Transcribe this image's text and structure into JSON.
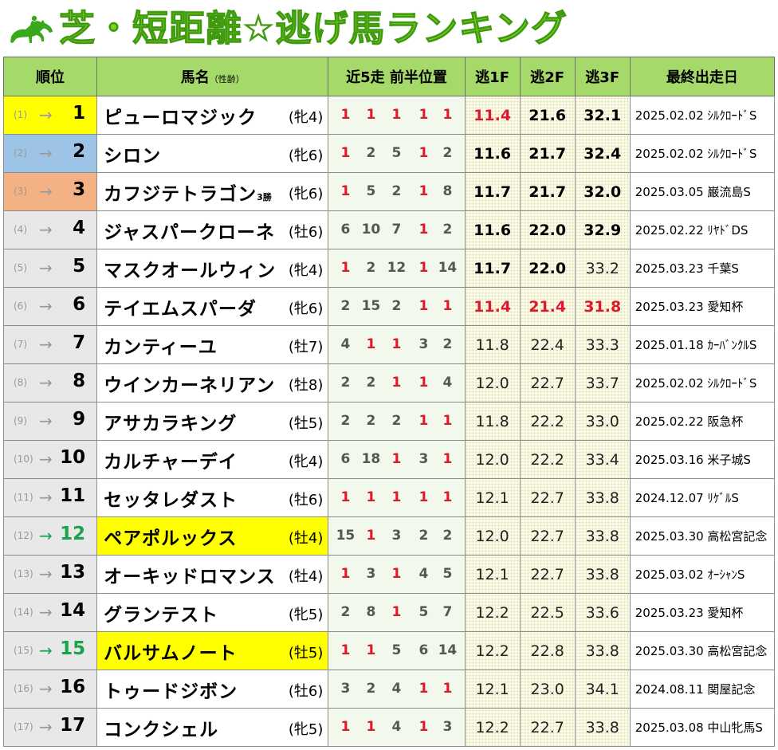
{
  "title": "芝・短距離☆逃げ馬ランキング",
  "logo_icon": "horse-jockey-icon",
  "headers": {
    "rank": "順位",
    "name": "馬名",
    "name_small": "（性齢）",
    "positions": "近5走 前半位置",
    "f1": "逃1F",
    "f2": "逃2F",
    "f3": "逃3F",
    "last": "最終出走日"
  },
  "colors": {
    "rank1": "#ffff00",
    "rank2": "#9dc3e6",
    "rank3": "#f4b183",
    "up": "#1aa34a",
    "red": "#e0162b",
    "highlight": "#ffff00"
  },
  "rows": [
    {
      "prev": "(1)",
      "arrow": "→",
      "rank": "1",
      "name": "ピューロマジック",
      "badge": "",
      "age": "(牝4)",
      "pos": [
        "1",
        "1",
        "1",
        "1",
        "1"
      ],
      "f1": "11.4",
      "f2": "21.6",
      "f3": "32.1",
      "last": "2025.02.02 ｼﾙｸﾛｰﾄﾞS"
    },
    {
      "prev": "(2)",
      "arrow": "→",
      "rank": "2",
      "name": "シロン",
      "badge": "",
      "age": "(牝6)",
      "pos": [
        "1",
        "2",
        "5",
        "1",
        "2"
      ],
      "f1": "11.6",
      "f2": "21.7",
      "f3": "32.4",
      "last": "2025.02.02 ｼﾙｸﾛｰﾄﾞS"
    },
    {
      "prev": "(3)",
      "arrow": "→",
      "rank": "3",
      "name": "カフジテトラゴン",
      "badge": "3勝",
      "age": "(牝6)",
      "pos": [
        "1",
        "5",
        "2",
        "1",
        "8"
      ],
      "f1": "11.7",
      "f2": "21.7",
      "f3": "32.0",
      "last": "2025.03.05 巌流島S"
    },
    {
      "prev": "(4)",
      "arrow": "→",
      "rank": "4",
      "name": "ジャスパークローネ",
      "badge": "",
      "age": "(牡6)",
      "pos": [
        "6",
        "10",
        "7",
        "1",
        "2"
      ],
      "f1": "11.6",
      "f2": "22.0",
      "f3": "32.9",
      "last": "2025.02.22 ﾘﾔﾄﾞDS"
    },
    {
      "prev": "(5)",
      "arrow": "→",
      "rank": "5",
      "name": "マスクオールウィン",
      "badge": "",
      "age": "(牝4)",
      "pos": [
        "1",
        "2",
        "12",
        "1",
        "14"
      ],
      "f1": "11.7",
      "f2": "22.0",
      "f3": "33.2",
      "last": "2025.03.23 千葉S"
    },
    {
      "prev": "(6)",
      "arrow": "→",
      "rank": "6",
      "name": "テイエムスパーダ",
      "badge": "",
      "age": "(牝6)",
      "pos": [
        "2",
        "15",
        "2",
        "1",
        "1"
      ],
      "f1": "11.4",
      "f2": "21.4",
      "f3": "31.8",
      "last": "2025.03.23 愛知杯"
    },
    {
      "prev": "(7)",
      "arrow": "→",
      "rank": "7",
      "name": "カンティーユ",
      "badge": "",
      "age": "(牡7)",
      "pos": [
        "4",
        "1",
        "1",
        "3",
        "2"
      ],
      "f1": "11.8",
      "f2": "22.4",
      "f3": "33.3",
      "last": "2025.01.18 ｶｰﾊﾞﾝｸﾙS"
    },
    {
      "prev": "(8)",
      "arrow": "→",
      "rank": "8",
      "name": "ウインカーネリアン",
      "badge": "",
      "age": "(牡8)",
      "pos": [
        "2",
        "2",
        "1",
        "1",
        "4"
      ],
      "f1": "12.0",
      "f2": "22.7",
      "f3": "33.7",
      "last": "2025.02.02 ｼﾙｸﾛｰﾄﾞS"
    },
    {
      "prev": "(9)",
      "arrow": "→",
      "rank": "9",
      "name": "アサカラキング",
      "badge": "",
      "age": "(牡5)",
      "pos": [
        "2",
        "2",
        "2",
        "1",
        "1"
      ],
      "f1": "11.8",
      "f2": "22.2",
      "f3": "33.0",
      "last": "2025.02.22 阪急杯"
    },
    {
      "prev": "(10)",
      "arrow": "→",
      "rank": "10",
      "name": "カルチャーデイ",
      "badge": "",
      "age": "(牝4)",
      "pos": [
        "6",
        "18",
        "1",
        "3",
        "1"
      ],
      "f1": "12.0",
      "f2": "22.2",
      "f3": "33.4",
      "last": "2025.03.16 米子城S"
    },
    {
      "prev": "(11)",
      "arrow": "→",
      "rank": "11",
      "name": "セッタレダスト",
      "badge": "",
      "age": "(牡6)",
      "pos": [
        "1",
        "1",
        "1",
        "1",
        "1"
      ],
      "f1": "12.1",
      "f2": "22.7",
      "f3": "33.8",
      "last": "2024.12.07 ﾘｹﾞﾙS"
    },
    {
      "prev": "(12)",
      "arrow": "→",
      "rank": "12",
      "name": "ペアポルックス",
      "badge": "",
      "age": "(牡4)",
      "pos": [
        "15",
        "1",
        "3",
        "2",
        "2"
      ],
      "f1": "12.0",
      "f2": "22.7",
      "f3": "33.8",
      "last": "2025.03.30 高松宮記念"
    },
    {
      "prev": "(13)",
      "arrow": "→",
      "rank": "13",
      "name": "オーキッドロマンス",
      "badge": "",
      "age": "(牡4)",
      "pos": [
        "1",
        "3",
        "1",
        "4",
        "5"
      ],
      "f1": "12.1",
      "f2": "22.7",
      "f3": "33.8",
      "last": "2025.03.02 ｵｰｼｬﾝS"
    },
    {
      "prev": "(14)",
      "arrow": "→",
      "rank": "14",
      "name": "グランテスト",
      "badge": "",
      "age": "(牝5)",
      "pos": [
        "2",
        "8",
        "1",
        "5",
        "7"
      ],
      "f1": "12.2",
      "f2": "22.5",
      "f3": "33.6",
      "last": "2025.03.23 愛知杯"
    },
    {
      "prev": "(15)",
      "arrow": "→",
      "rank": "15",
      "name": "バルサムノート",
      "badge": "",
      "age": "(牡5)",
      "pos": [
        "1",
        "1",
        "5",
        "6",
        "14"
      ],
      "f1": "12.2",
      "f2": "22.8",
      "f3": "33.8",
      "last": "2025.03.30 高松宮記念"
    },
    {
      "prev": "(16)",
      "arrow": "→",
      "rank": "16",
      "name": "トゥードジボン",
      "badge": "",
      "age": "(牡6)",
      "pos": [
        "3",
        "2",
        "4",
        "1",
        "1"
      ],
      "f1": "12.1",
      "f2": "23.0",
      "f3": "34.1",
      "last": "2024.08.11 関屋記念"
    },
    {
      "prev": "(17)",
      "arrow": "→",
      "rank": "17",
      "name": "コンクシェル",
      "badge": "",
      "age": "(牝5)",
      "pos": [
        "1",
        "1",
        "4",
        "1",
        "3"
      ],
      "f1": "12.2",
      "f2": "22.7",
      "f3": "33.8",
      "last": "2025.03.08 中山牝馬S"
    }
  ]
}
